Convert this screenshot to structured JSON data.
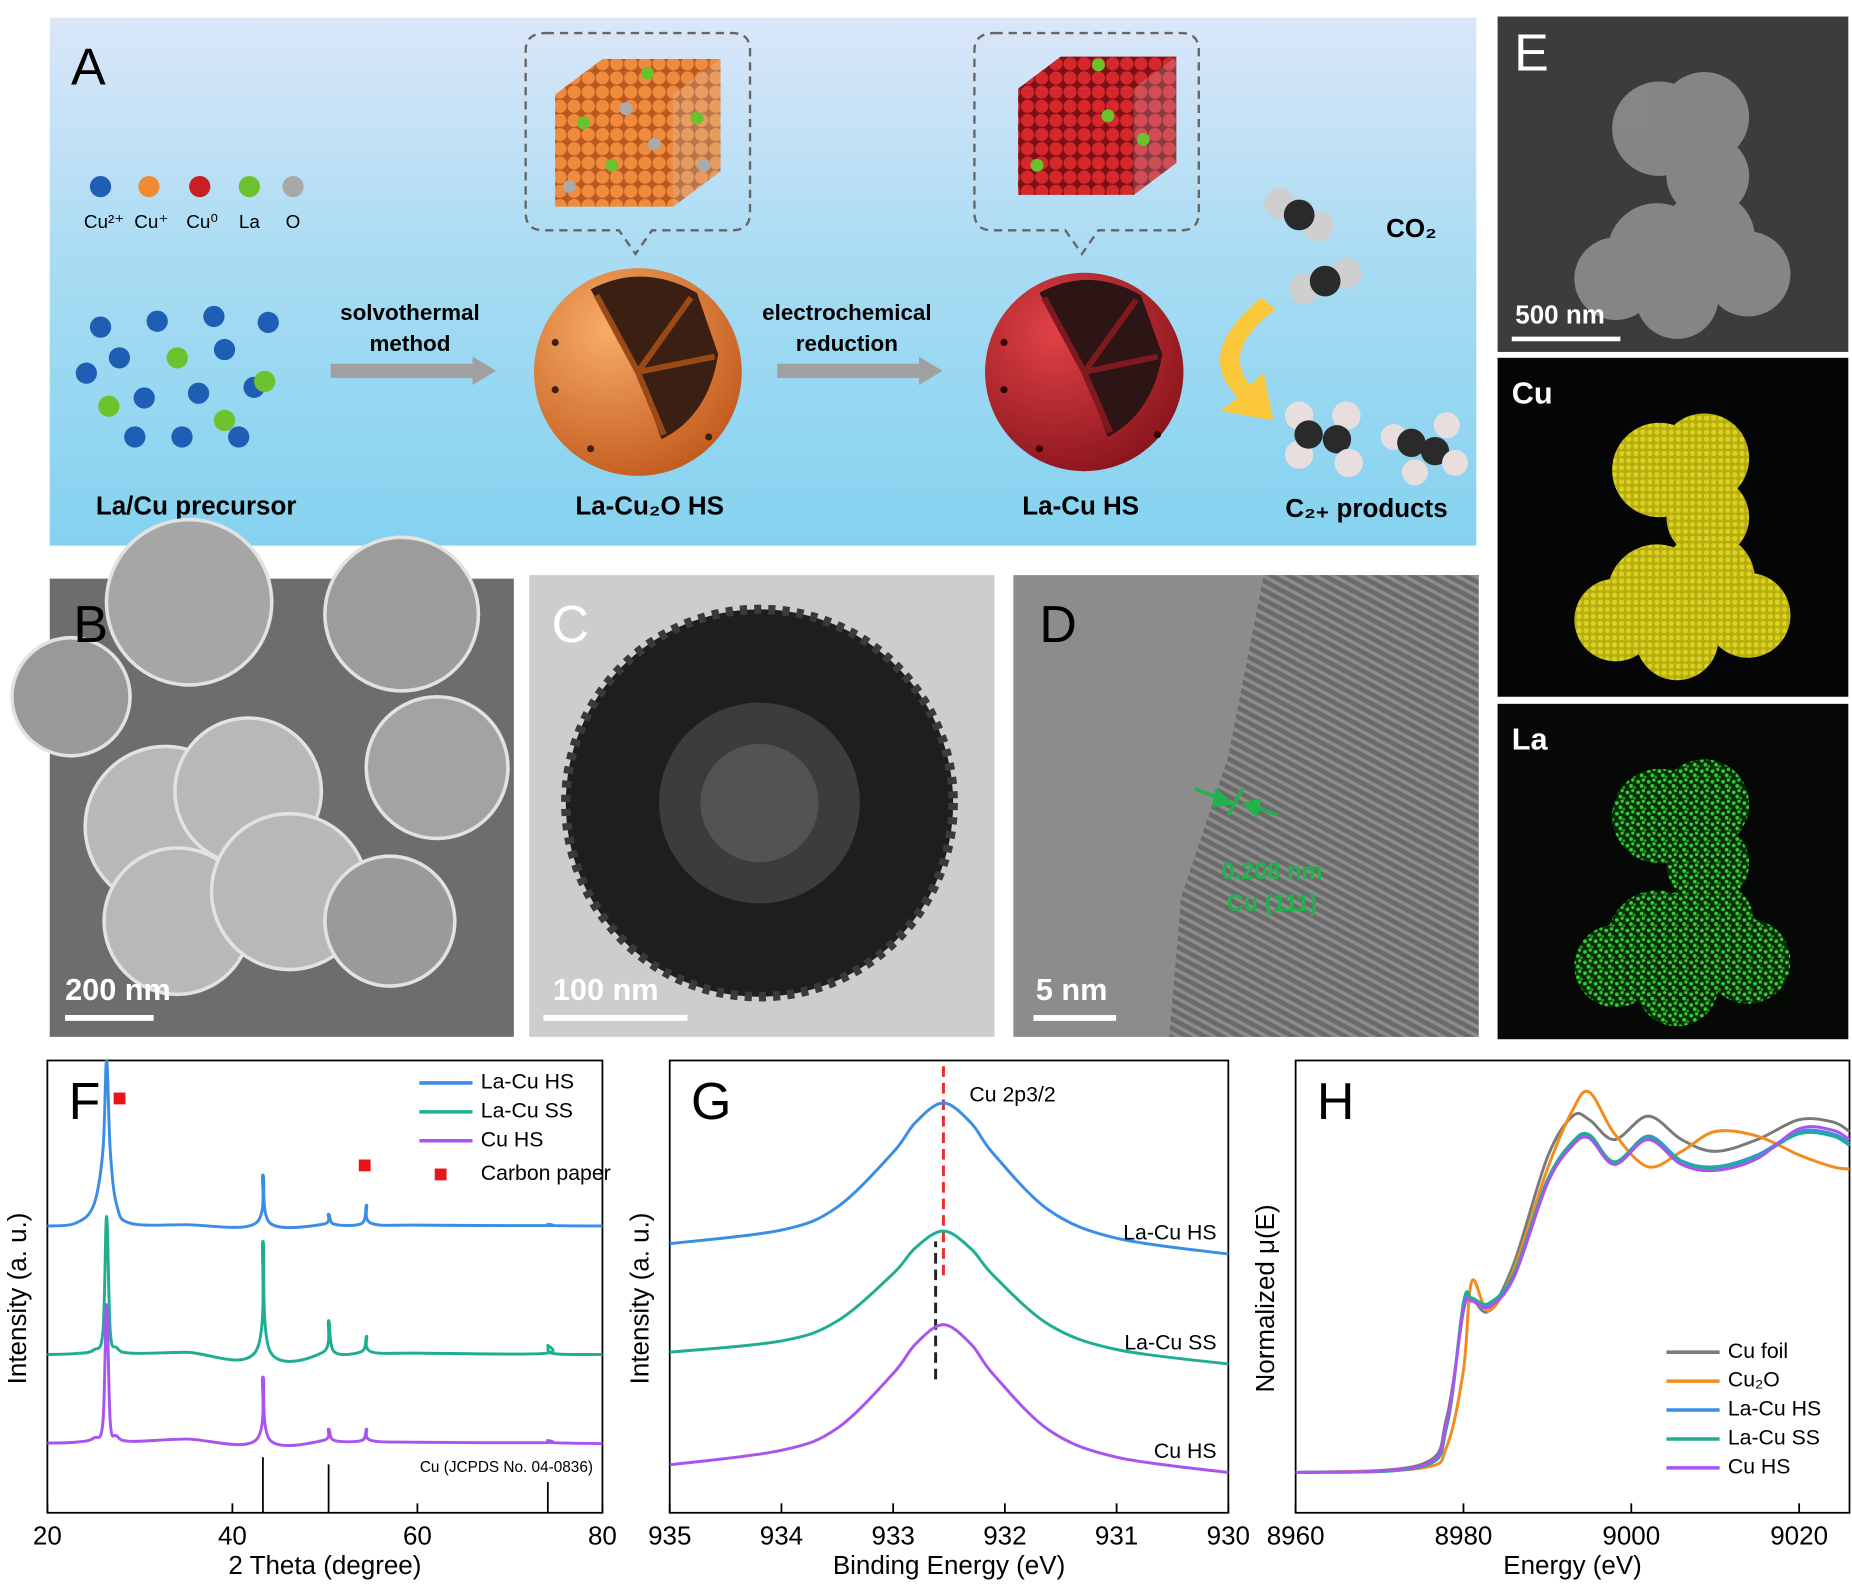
{
  "panels": {
    "A": {
      "label": "A",
      "legend": [
        "Cu²⁺",
        "Cu⁺",
        "Cu⁰",
        "La",
        "O"
      ],
      "precursor": "La/Cu precursor",
      "step1": [
        "solvothermal",
        "method"
      ],
      "step2": [
        "electrochemical",
        "reduction"
      ],
      "intermediate": "La-Cu₂O HS",
      "product": "La-Cu HS",
      "reactant": "CO₂",
      "products": "C₂₊ products"
    },
    "B": {
      "label": "B",
      "scale_bar": "200 nm"
    },
    "C": {
      "label": "C",
      "scale_bar": "100 nm"
    },
    "D": {
      "label": "D",
      "scale_bar": "5 nm",
      "spacing": "0.208 nm",
      "plane": "Cu (111)"
    },
    "E": {
      "label": "E",
      "scale_bar": "500 nm",
      "maps": [
        "Cu",
        "La"
      ]
    }
  },
  "chart_data": [
    {
      "type": "line",
      "label": "F",
      "xlabel": "2 Theta (degree)",
      "ylabel": "Intensity (a. u.)",
      "xlim": [
        20,
        80
      ],
      "xticks": [
        20,
        40,
        60,
        80
      ],
      "ylim": [
        0,
        100
      ],
      "legend": "upper right",
      "x": [
        20,
        23,
        25,
        26,
        26.4,
        26.8,
        27.5,
        29,
        35,
        42.5,
        43.3,
        44.1,
        49.8,
        50.4,
        51,
        54,
        54.5,
        55,
        60,
        73.5,
        74.1,
        74.7,
        80
      ],
      "series": [
        {
          "name": "La-Cu HS",
          "color": "#3a8ee6",
          "values": [
            63.4,
            64,
            68,
            80,
            100,
            80,
            68,
            64,
            63.7,
            64,
            74.7,
            64,
            63.8,
            66,
            63.8,
            64,
            68,
            64,
            63.6,
            63.5,
            63.8,
            63.5,
            63.4
          ]
        },
        {
          "name": "La-Cu SS",
          "color": "#1fae92",
          "values": [
            35,
            35.2,
            36,
            40,
            65.5,
            40,
            36.5,
            35.3,
            35.5,
            35.6,
            60,
            35.6,
            35.5,
            42.5,
            35.6,
            35.7,
            39,
            35.6,
            35.3,
            35.2,
            37,
            35.2,
            35
          ]
        },
        {
          "name": "Cu HS",
          "color": "#a855f0",
          "values": [
            15.4,
            15.6,
            16.5,
            20,
            46,
            20,
            17,
            15.8,
            16.3,
            16,
            30,
            16,
            16,
            18.5,
            16,
            16,
            18.5,
            16,
            15.6,
            15.5,
            16,
            15.5,
            15.3
          ]
        }
      ],
      "markers": {
        "name": "Carbon paper",
        "color": "#e8141a",
        "x": [
          27.8,
          54.3
        ],
        "y": [
          91.6,
          76.8
        ]
      },
      "reference": {
        "label": "Cu (JCPDS No. 04-0836)",
        "x": [
          43.3,
          50.4,
          74.1
        ],
        "heights": [
          12.3,
          10.7,
          6.8
        ]
      }
    },
    {
      "type": "line",
      "label": "G",
      "xlabel": "Binding Energy (eV)",
      "ylabel": "Intensity (a. u.)",
      "xlim": [
        935,
        930
      ],
      "xticks": [
        935,
        934,
        933,
        932,
        931,
        930
      ],
      "ylim": [
        0,
        100
      ],
      "annotation": "Cu 2p3/2",
      "x": [
        935,
        934,
        933.5,
        933,
        932.8,
        932.55,
        932.3,
        932.1,
        931.6,
        931,
        930
      ],
      "series": [
        {
          "name": "La-Cu HS",
          "color": "#3a8ee6",
          "values": [
            59.5,
            62.5,
            67.6,
            79.7,
            86.3,
            90.6,
            86.1,
            79.3,
            66.8,
            60.7,
            57.2
          ]
        },
        {
          "name": "La-Cu SS",
          "color": "#1fae92",
          "values": [
            35.5,
            38.0,
            42.4,
            52.9,
            58.6,
            62.3,
            58.3,
            52.4,
            41.5,
            36.1,
            32.9
          ]
        },
        {
          "name": "Cu HS",
          "color": "#a855f0",
          "values": [
            10.6,
            13.8,
            18.7,
            30.8,
            37.3,
            41.6,
            37.2,
            30.5,
            18.2,
            12.3,
            8.9
          ]
        }
      ],
      "dashed_lines": [
        {
          "x": 932.55,
          "y": [
            52.5,
            100
          ],
          "color": "#e8302a"
        },
        {
          "x": 932.62,
          "y": [
            29.5,
            60
          ],
          "color": "#222222"
        }
      ]
    },
    {
      "type": "line",
      "label": "H",
      "xlabel": "Energy (eV)",
      "ylabel": "Normalized μ(E)",
      "xlim": [
        8960,
        9026
      ],
      "xticks": [
        8960,
        8980,
        9000,
        9020
      ],
      "ylim": [
        0,
        100
      ],
      "legend": "lower right",
      "x": [
        8960,
        8975,
        8978,
        8980,
        8981,
        8983,
        8986,
        8990,
        8993,
        8995,
        8998,
        9002,
        9006,
        9010,
        9015,
        9020,
        9024,
        9026
      ],
      "series": [
        {
          "name": "Cu foil",
          "color": "#7a7a7a",
          "values": [
            8.9,
            10.7,
            21.1,
            44.6,
            47.3,
            44.6,
            55.1,
            78.6,
            87.7,
            86.9,
            82.5,
            87.7,
            82.5,
            79.9,
            82.5,
            86.9,
            86.4,
            84.3
          ]
        },
        {
          "name": "Cu₂O",
          "color": "#f28c1e",
          "values": [
            8.9,
            9.9,
            14.6,
            31.6,
            51.2,
            44.6,
            53.8,
            76,
            89,
            93,
            83.8,
            76.5,
            79.9,
            84.3,
            83.3,
            79.1,
            76.5,
            76
          ]
        },
        {
          "name": "La-Cu HS",
          "color": "#3a8ee6",
          "values": [
            8.9,
            10.2,
            19,
            46,
            47.3,
            46,
            52.5,
            73.4,
            81.7,
            83.3,
            77.3,
            83.3,
            77.8,
            76.5,
            79.1,
            84.3,
            83.8,
            81.7
          ]
        },
        {
          "name": "La-Cu SS",
          "color": "#1fae92",
          "values": [
            8.9,
            10.2,
            19.3,
            46.5,
            47.5,
            46.3,
            52.8,
            73.6,
            82.0,
            83.6,
            77.6,
            83.0,
            77.6,
            76.3,
            78.8,
            83.8,
            83.3,
            81.2
          ]
        },
        {
          "name": "Cu HS",
          "color": "#a855f0",
          "values": [
            8.9,
            10.4,
            20,
            45,
            46.8,
            45.5,
            52,
            72.8,
            81.2,
            82.8,
            77,
            82.5,
            77,
            75.7,
            78.3,
            84.9,
            84.6,
            82.5
          ]
        }
      ]
    }
  ]
}
